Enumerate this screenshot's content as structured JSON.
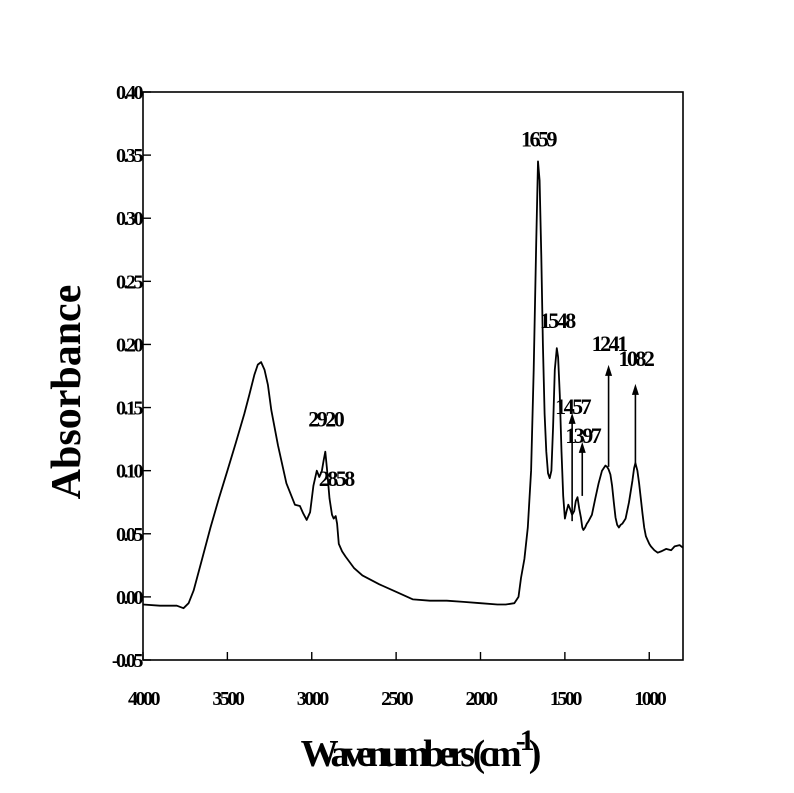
{
  "chart_data": {
    "type": "line",
    "title": "",
    "xlabel": "Wavenumbers (cm",
    "xlabel_superscript": "-1",
    "xlabel_close": ")",
    "ylabel": "Absorbance",
    "xlim": [
      4000,
      800
    ],
    "ylim": [
      -0.05,
      0.4
    ],
    "x_reversed": true,
    "grid": false,
    "legend": "none",
    "x_ticks": [
      {
        "value": 4000,
        "label": "4000"
      },
      {
        "value": 3500,
        "label": "3500"
      },
      {
        "value": 3000,
        "label": "3000"
      },
      {
        "value": 2500,
        "label": "2500"
      },
      {
        "value": 2000,
        "label": "2000"
      },
      {
        "value": 1500,
        "label": "1500"
      },
      {
        "value": 1000,
        "label": "1000"
      }
    ],
    "y_ticks": [
      {
        "value": -0.05,
        "label": "-0.05"
      },
      {
        "value": 0.0,
        "label": "0.00"
      },
      {
        "value": 0.05,
        "label": "0.05"
      },
      {
        "value": 0.1,
        "label": "0.10"
      },
      {
        "value": 0.15,
        "label": "0.15"
      },
      {
        "value": 0.2,
        "label": "0.20"
      },
      {
        "value": 0.25,
        "label": "0.25"
      },
      {
        "value": 0.3,
        "label": "0.30"
      },
      {
        "value": 0.35,
        "label": "0.35"
      },
      {
        "value": 0.4,
        "label": "0.40"
      }
    ],
    "annotations": [
      {
        "label": "1659",
        "x": 1659,
        "y": 0.357,
        "arrow": false
      },
      {
        "label": "1548",
        "x": 1548,
        "y": 0.213,
        "arrow": false
      },
      {
        "label": "1457",
        "x": 1457,
        "y": 0.145,
        "arrow": true,
        "arrow_from": 0.145,
        "arrow_to": 0.06
      },
      {
        "label": "1397",
        "x": 1397,
        "y": 0.122,
        "arrow": true,
        "arrow_from": 0.122,
        "arrow_to": 0.08
      },
      {
        "label": "1241",
        "x": 1241,
        "y": 0.195,
        "arrow": true,
        "arrow_from": 0.183,
        "arrow_to": 0.103
      },
      {
        "label": "1082",
        "x": 1082,
        "y": 0.183,
        "arrow": true,
        "arrow_from": 0.168,
        "arrow_to": 0.105
      },
      {
        "label": "2920",
        "x": 2920,
        "y": 0.135,
        "arrow": false
      },
      {
        "label": "2858",
        "x": 2858,
        "y": 0.088,
        "arrow": false
      }
    ],
    "series": [
      {
        "color": "#000000",
        "x": [
          4000,
          3900,
          3800,
          3760,
          3730,
          3700,
          3650,
          3600,
          3550,
          3500,
          3450,
          3400,
          3370,
          3340,
          3320,
          3300,
          3280,
          3260,
          3240,
          3200,
          3150,
          3100,
          3070,
          3050,
          3030,
          3010,
          2990,
          2970,
          2955,
          2940,
          2930,
          2920,
          2910,
          2895,
          2880,
          2870,
          2858,
          2850,
          2840,
          2820,
          2800,
          2750,
          2700,
          2600,
          2500,
          2400,
          2300,
          2200,
          2100,
          2000,
          1900,
          1850,
          1800,
          1775,
          1760,
          1740,
          1720,
          1700,
          1685,
          1670,
          1659,
          1650,
          1640,
          1630,
          1620,
          1610,
          1600,
          1590,
          1580,
          1570,
          1560,
          1548,
          1540,
          1530,
          1520,
          1510,
          1500,
          1490,
          1480,
          1470,
          1457,
          1445,
          1435,
          1425,
          1415,
          1405,
          1397,
          1390,
          1380,
          1370,
          1360,
          1340,
          1320,
          1300,
          1280,
          1260,
          1250,
          1241,
          1230,
          1220,
          1210,
          1200,
          1190,
          1180,
          1170,
          1160,
          1140,
          1120,
          1100,
          1090,
          1082,
          1070,
          1060,
          1050,
          1040,
          1030,
          1020,
          1010,
          1000,
          990,
          970,
          950,
          930,
          900,
          870,
          850,
          820,
          800
        ],
        "y": [
          -0.006,
          -0.007,
          -0.007,
          -0.009,
          -0.005,
          0.005,
          0.03,
          0.055,
          0.078,
          0.1,
          0.122,
          0.145,
          0.16,
          0.176,
          0.184,
          0.186,
          0.18,
          0.168,
          0.148,
          0.12,
          0.09,
          0.073,
          0.072,
          0.066,
          0.061,
          0.067,
          0.088,
          0.1,
          0.095,
          0.1,
          0.108,
          0.115,
          0.102,
          0.078,
          0.065,
          0.062,
          0.064,
          0.058,
          0.042,
          0.036,
          0.032,
          0.023,
          0.017,
          0.01,
          0.004,
          -0.002,
          -0.003,
          -0.003,
          -0.004,
          -0.005,
          -0.006,
          -0.006,
          -0.005,
          0.0,
          0.015,
          0.03,
          0.055,
          0.1,
          0.18,
          0.28,
          0.345,
          0.33,
          0.27,
          0.2,
          0.145,
          0.115,
          0.098,
          0.094,
          0.1,
          0.135,
          0.18,
          0.197,
          0.19,
          0.16,
          0.115,
          0.08,
          0.062,
          0.068,
          0.073,
          0.07,
          0.065,
          0.068,
          0.076,
          0.079,
          0.07,
          0.063,
          0.055,
          0.053,
          0.055,
          0.058,
          0.06,
          0.065,
          0.078,
          0.09,
          0.1,
          0.104,
          0.103,
          0.101,
          0.097,
          0.088,
          0.075,
          0.063,
          0.057,
          0.055,
          0.057,
          0.058,
          0.062,
          0.075,
          0.092,
          0.102,
          0.106,
          0.1,
          0.09,
          0.078,
          0.066,
          0.055,
          0.048,
          0.045,
          0.042,
          0.04,
          0.037,
          0.035,
          0.036,
          0.038,
          0.037,
          0.04,
          0.041,
          0.039
        ]
      }
    ]
  }
}
